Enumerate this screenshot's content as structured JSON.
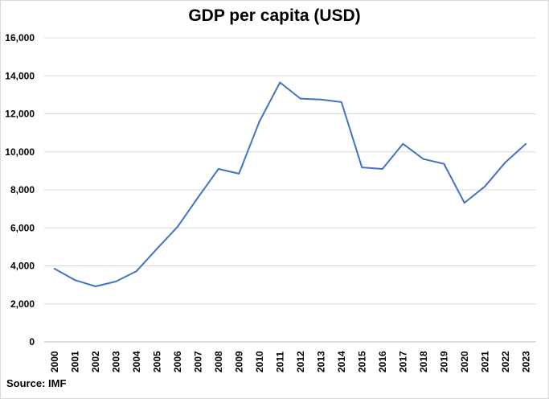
{
  "chart_data": {
    "type": "line",
    "title": "GDP per capita (USD)",
    "xlabel": "",
    "ylabel": "",
    "ylim": [
      0,
      16000
    ],
    "yticks": [
      "0",
      "2,000",
      "4,000",
      "6,000",
      "8,000",
      "10,000",
      "12,000",
      "14,000",
      "16,000"
    ],
    "grid": true,
    "categories": [
      "2000",
      "2001",
      "2002",
      "2003",
      "2004",
      "2005",
      "2006",
      "2007",
      "2008",
      "2009",
      "2010",
      "2011",
      "2012",
      "2013",
      "2014",
      "2015",
      "2016",
      "2017",
      "2018",
      "2019",
      "2020",
      "2021",
      "2022",
      "2023"
    ],
    "series": [
      {
        "name": "GDP per capita (USD)",
        "color": "#4472C4",
        "values": [
          3850,
          3250,
          2920,
          3180,
          3720,
          4900,
          6050,
          7600,
          9100,
          8850,
          11600,
          13650,
          12800,
          12750,
          12620,
          9180,
          9100,
          10420,
          9620,
          9370,
          7320,
          8180,
          9450,
          10420
        ]
      }
    ],
    "source": "Source: IMF"
  }
}
